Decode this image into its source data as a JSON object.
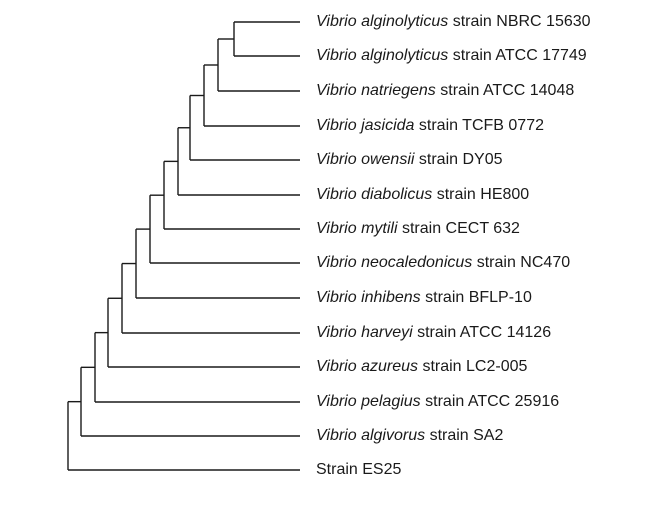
{
  "tree": {
    "leaves": [
      {
        "genus": "Vibrio",
        "species": "alginolyticus",
        "strain": "strain NBRC 15630"
      },
      {
        "genus": "Vibrio",
        "species": "alginolyticus",
        "strain": "strain ATCC 17749"
      },
      {
        "genus": "Vibrio",
        "species": "natriegens",
        "strain": "strain ATCC 14048"
      },
      {
        "genus": "Vibrio",
        "species": "jasicida",
        "strain": "strain TCFB 0772"
      },
      {
        "genus": "Vibrio",
        "species": "owensii",
        "strain": "strain DY05"
      },
      {
        "genus": "Vibrio",
        "species": "diabolicus",
        "strain": "strain HE800"
      },
      {
        "genus": "Vibrio",
        "species": "mytili",
        "strain": "strain CECT 632"
      },
      {
        "genus": "Vibrio",
        "species": "neocaledonicus",
        "strain": "strain NC470"
      },
      {
        "genus": "Vibrio",
        "species": "inhibens",
        "strain": "strain BFLP-10"
      },
      {
        "genus": "Vibrio",
        "species": "harveyi",
        "strain": "strain ATCC 14126"
      },
      {
        "genus": "Vibrio",
        "species": "azureus",
        "strain": "strain LC2-005"
      },
      {
        "genus": "Vibrio",
        "species": "pelagius",
        "strain": "strain ATCC 25916"
      },
      {
        "genus": "Vibrio",
        "species": "algivorus",
        "strain": "strain SA2"
      },
      {
        "genus": "",
        "species": "",
        "strain": "Strain ES25"
      }
    ]
  }
}
